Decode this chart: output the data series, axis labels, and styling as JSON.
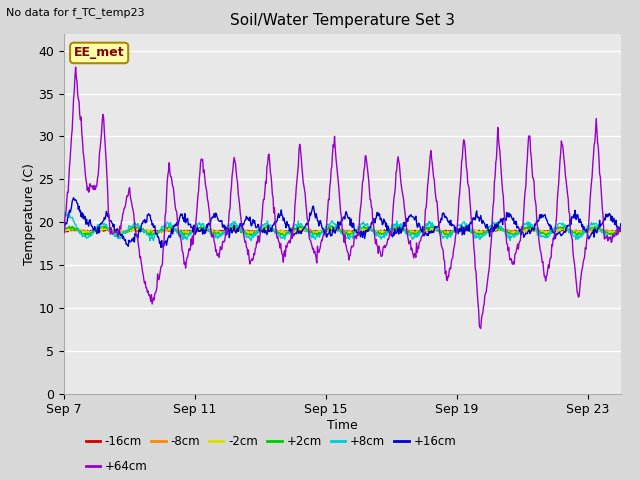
{
  "title": "Soil/Water Temperature Set 3",
  "no_data_label": "No data for f_TC_temp23",
  "station_label": "EE_met",
  "xlabel": "Time",
  "ylabel": "Temperature (C)",
  "xlim": [
    0,
    17
  ],
  "ylim": [
    0,
    42
  ],
  "yticks": [
    0,
    5,
    10,
    15,
    20,
    25,
    30,
    35,
    40
  ],
  "xtick_labels": [
    "Sep 7",
    "Sep 11",
    "Sep 15",
    "Sep 19",
    "Sep 23"
  ],
  "xtick_positions": [
    0,
    4,
    8,
    12,
    16
  ],
  "fig_bg": "#d8d8d8",
  "plot_bg": "#e8e8e8",
  "grid_color": "#ffffff",
  "series_colors": {
    "neg16": "#cc0000",
    "neg8": "#ff8800",
    "neg2": "#dddd00",
    "pos2": "#00cc00",
    "pos8": "#00cccc",
    "pos16": "#0000cc",
    "pos64": "#9900cc"
  },
  "legend_labels": [
    "-16cm",
    "-8cm",
    "-2cm",
    "+2cm",
    "+8cm",
    "+16cm",
    "+64cm"
  ],
  "legend_colors": [
    "#cc0000",
    "#ff8800",
    "#dddd00",
    "#00cc00",
    "#00cccc",
    "#0000cc",
    "#9900cc"
  ],
  "station_box_fc": "#ffffaa",
  "station_box_ec": "#aa8800",
  "station_text_color": "#880000"
}
